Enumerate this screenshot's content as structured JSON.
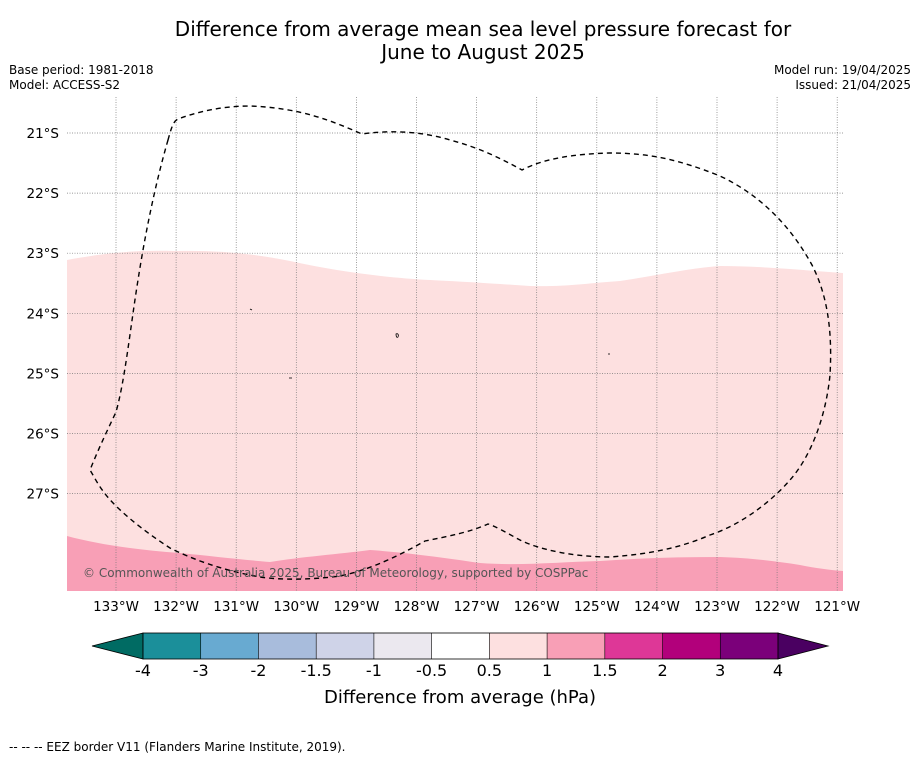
{
  "title": {
    "line1": "Difference from average mean sea level pressure forecast for",
    "line2": "June to August 2025"
  },
  "meta": {
    "base_period": "Base period: 1981-2018",
    "model": "Model: ACCESS-S2",
    "model_run": "Model run: 19/04/2025",
    "issued": "Issued: 21/04/2025"
  },
  "map": {
    "lat_labels": [
      "21°S",
      "22°S",
      "23°S",
      "24°S",
      "25°S",
      "26°S",
      "27°S"
    ],
    "lon_labels": [
      "133°W",
      "132°W",
      "131°W",
      "130°W",
      "129°W",
      "128°W",
      "127°W",
      "126°W",
      "125°W",
      "124°W",
      "123°W",
      "122°W",
      "121°W"
    ],
    "copyright": "© Commonwealth of Australia 2025, Bureau of Meteorology, supported by COSPPac",
    "colors": {
      "band_0p5_1": "#fde0e0",
      "band_1_1p5": "#f89fb6",
      "grid": "#777777",
      "eez_line": "#000000"
    }
  },
  "colorbar": {
    "ticks": [
      "-4",
      "-3",
      "-2",
      "-1.5",
      "-1",
      "-0.5",
      "0.5",
      "1",
      "1.5",
      "2",
      "3",
      "4"
    ],
    "colors": [
      "#006b63",
      "#1b8f9a",
      "#68aad1",
      "#a8bcdc",
      "#cfd3e8",
      "#ebe8ef",
      "#ffffff",
      "#fde0e0",
      "#f89fb6",
      "#de3797",
      "#b2007b",
      "#7b007a",
      "#4a0061"
    ],
    "label": "Difference from average (hPa)"
  },
  "footnote": "--  --  -- EEZ border V11 (Flanders Marine Institute, 2019)."
}
